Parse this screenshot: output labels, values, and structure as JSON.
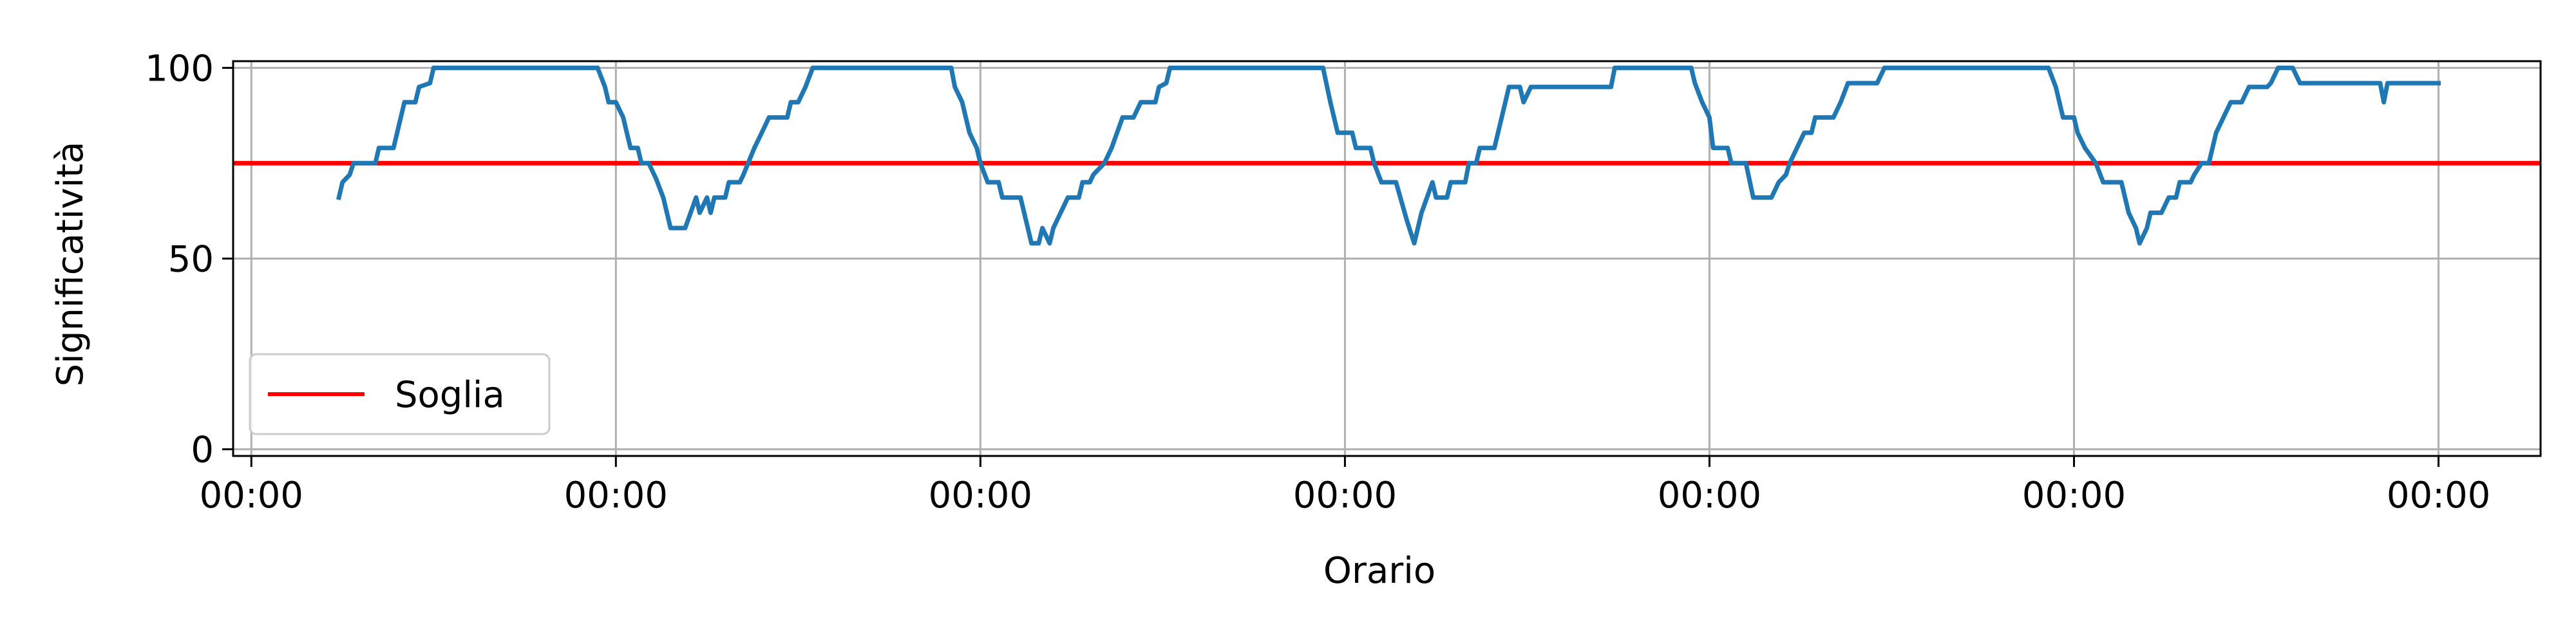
{
  "chart_data": {
    "type": "line",
    "xlabel": "Orario",
    "ylabel": "Significatività",
    "ylim": [
      0,
      100
    ],
    "xlim": [
      -0.05,
      6.28
    ],
    "grid": true,
    "legend_position": "lower-left",
    "x_ticks": [
      {
        "value": 0,
        "label": "00:00"
      },
      {
        "value": 1,
        "label": "00:00"
      },
      {
        "value": 2,
        "label": "00:00"
      },
      {
        "value": 3,
        "label": "00:00"
      },
      {
        "value": 4,
        "label": "00:00"
      },
      {
        "value": 5,
        "label": "00:00"
      },
      {
        "value": 6,
        "label": "00:00"
      }
    ],
    "y_ticks": [
      {
        "value": 0,
        "label": "0"
      },
      {
        "value": 50,
        "label": "50"
      },
      {
        "value": 100,
        "label": "100"
      }
    ],
    "threshold": {
      "name": "Soglia",
      "value": 75,
      "color": "#ff0000"
    },
    "series": [
      {
        "color": "#1f77b4",
        "points": [
          [
            0.24,
            66
          ],
          [
            0.25,
            70
          ],
          [
            0.27,
            72
          ],
          [
            0.28,
            75
          ],
          [
            0.34,
            75
          ],
          [
            0.35,
            79
          ],
          [
            0.39,
            79
          ],
          [
            0.4,
            83
          ],
          [
            0.42,
            91
          ],
          [
            0.45,
            91
          ],
          [
            0.46,
            95
          ],
          [
            0.49,
            96
          ],
          [
            0.5,
            100
          ],
          [
            0.95,
            100
          ],
          [
            0.97,
            95
          ],
          [
            0.98,
            91
          ],
          [
            1.0,
            91
          ],
          [
            1.02,
            87
          ],
          [
            1.03,
            83
          ],
          [
            1.04,
            79
          ],
          [
            1.06,
            79
          ],
          [
            1.07,
            75
          ],
          [
            1.09,
            75
          ],
          [
            1.11,
            71
          ],
          [
            1.13,
            66
          ],
          [
            1.15,
            58
          ],
          [
            1.19,
            58
          ],
          [
            1.22,
            66
          ],
          [
            1.23,
            62
          ],
          [
            1.25,
            66
          ],
          [
            1.26,
            62
          ],
          [
            1.27,
            66
          ],
          [
            1.3,
            66
          ],
          [
            1.31,
            70
          ],
          [
            1.34,
            70
          ],
          [
            1.35,
            72
          ],
          [
            1.38,
            79
          ],
          [
            1.4,
            83
          ],
          [
            1.42,
            87
          ],
          [
            1.47,
            87
          ],
          [
            1.48,
            91
          ],
          [
            1.5,
            91
          ],
          [
            1.52,
            95
          ],
          [
            1.54,
            100
          ],
          [
            1.92,
            100
          ],
          [
            1.93,
            95
          ],
          [
            1.95,
            91
          ],
          [
            1.96,
            87
          ],
          [
            1.97,
            83
          ],
          [
            1.99,
            79
          ],
          [
            2.0,
            75
          ],
          [
            2.02,
            70
          ],
          [
            2.05,
            70
          ],
          [
            2.06,
            66
          ],
          [
            2.11,
            66
          ],
          [
            2.13,
            58
          ],
          [
            2.14,
            54
          ],
          [
            2.16,
            54
          ],
          [
            2.17,
            58
          ],
          [
            2.19,
            54
          ],
          [
            2.2,
            58
          ],
          [
            2.22,
            62
          ],
          [
            2.24,
            66
          ],
          [
            2.27,
            66
          ],
          [
            2.28,
            70
          ],
          [
            2.3,
            70
          ],
          [
            2.31,
            72
          ],
          [
            2.34,
            75
          ],
          [
            2.36,
            79
          ],
          [
            2.39,
            87
          ],
          [
            2.42,
            87
          ],
          [
            2.44,
            91
          ],
          [
            2.48,
            91
          ],
          [
            2.49,
            95
          ],
          [
            2.51,
            96
          ],
          [
            2.52,
            100
          ],
          [
            2.94,
            100
          ],
          [
            2.96,
            91
          ],
          [
            2.98,
            83
          ],
          [
            3.02,
            83
          ],
          [
            3.03,
            79
          ],
          [
            3.07,
            79
          ],
          [
            3.08,
            75
          ],
          [
            3.1,
            70
          ],
          [
            3.14,
            70
          ],
          [
            3.17,
            60
          ],
          [
            3.19,
            54
          ],
          [
            3.21,
            62
          ],
          [
            3.24,
            70
          ],
          [
            3.25,
            66
          ],
          [
            3.28,
            66
          ],
          [
            3.29,
            70
          ],
          [
            3.33,
            70
          ],
          [
            3.34,
            75
          ],
          [
            3.36,
            75
          ],
          [
            3.37,
            79
          ],
          [
            3.41,
            79
          ],
          [
            3.43,
            87
          ],
          [
            3.45,
            95
          ],
          [
            3.48,
            95
          ],
          [
            3.49,
            91
          ],
          [
            3.51,
            95
          ],
          [
            3.73,
            95
          ],
          [
            3.74,
            100
          ],
          [
            3.95,
            100
          ],
          [
            3.96,
            96
          ],
          [
            3.98,
            91
          ],
          [
            4.0,
            87
          ],
          [
            4.01,
            79
          ],
          [
            4.05,
            79
          ],
          [
            4.06,
            75
          ],
          [
            4.1,
            75
          ],
          [
            4.12,
            66
          ],
          [
            4.17,
            66
          ],
          [
            4.19,
            70
          ],
          [
            4.21,
            72
          ],
          [
            4.22,
            75
          ],
          [
            4.24,
            79
          ],
          [
            4.26,
            83
          ],
          [
            4.28,
            83
          ],
          [
            4.29,
            87
          ],
          [
            4.34,
            87
          ],
          [
            4.36,
            91
          ],
          [
            4.38,
            96
          ],
          [
            4.46,
            96
          ],
          [
            4.48,
            100
          ],
          [
            4.93,
            100
          ],
          [
            4.95,
            95
          ],
          [
            4.97,
            87
          ],
          [
            5.0,
            87
          ],
          [
            5.01,
            83
          ],
          [
            5.03,
            79
          ],
          [
            5.06,
            75
          ],
          [
            5.08,
            70
          ],
          [
            5.13,
            70
          ],
          [
            5.15,
            62
          ],
          [
            5.17,
            58
          ],
          [
            5.18,
            54
          ],
          [
            5.2,
            58
          ],
          [
            5.21,
            62
          ],
          [
            5.24,
            62
          ],
          [
            5.26,
            66
          ],
          [
            5.28,
            66
          ],
          [
            5.29,
            70
          ],
          [
            5.32,
            70
          ],
          [
            5.33,
            72
          ],
          [
            5.35,
            75
          ],
          [
            5.37,
            75
          ],
          [
            5.39,
            83
          ],
          [
            5.41,
            87
          ],
          [
            5.43,
            91
          ],
          [
            5.46,
            91
          ],
          [
            5.48,
            95
          ],
          [
            5.53,
            95
          ],
          [
            5.54,
            96
          ],
          [
            5.56,
            100
          ],
          [
            5.6,
            100
          ],
          [
            5.62,
            96
          ],
          [
            5.84,
            96
          ],
          [
            5.85,
            91
          ],
          [
            5.86,
            96
          ],
          [
            6.0,
            96
          ]
        ]
      }
    ]
  },
  "legend": {
    "entry_label": "Soglia"
  }
}
